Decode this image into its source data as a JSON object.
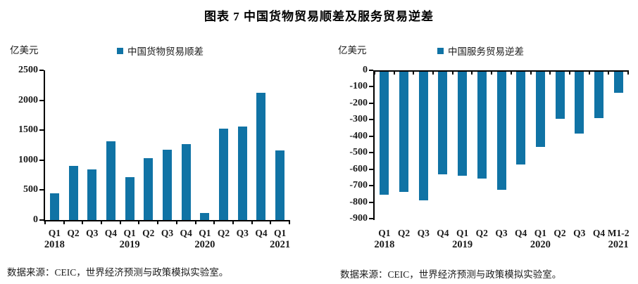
{
  "header": {
    "title": "图表 7  中国货物贸易顺差及服务贸易逆差"
  },
  "colors": {
    "bar": "#1073A5",
    "axis": "#000000",
    "text": "#1a1a1a"
  },
  "chart_data": [
    {
      "type": "bar",
      "title": "中国货物贸易顺差",
      "unit_label": "亿美元",
      "legend": [
        "中国货物贸易顺差"
      ],
      "legend_position": "top",
      "grid": false,
      "categories": [
        "Q1",
        "Q2",
        "Q3",
        "Q4",
        "Q1",
        "Q2",
        "Q3",
        "Q4",
        "Q1",
        "Q2",
        "Q3",
        "Q4",
        "Q1"
      ],
      "year_labels": [
        {
          "at_index": 0,
          "label": "2018"
        },
        {
          "at_index": 4,
          "label": "2019"
        },
        {
          "at_index": 8,
          "label": "2020"
        },
        {
          "at_index": 12,
          "label": "2021"
        }
      ],
      "values": [
        445,
        900,
        840,
        1315,
        720,
        1035,
        1175,
        1270,
        115,
        1525,
        1560,
        2120,
        1160
      ],
      "ylim": [
        0,
        2500
      ],
      "ytick_step": 500,
      "source_note": "数据来源：CEIC，世界经济预测与政策模拟实验室。"
    },
    {
      "type": "bar",
      "title": "中国服务贸易逆差",
      "unit_label": "亿美元",
      "legend": [
        "中国服务贸易逆差"
      ],
      "legend_position": "top",
      "grid": false,
      "categories": [
        "Q1",
        "Q2",
        "Q3",
        "Q4",
        "Q1",
        "Q2",
        "Q3",
        "Q4",
        "Q1",
        "Q2",
        "Q3",
        "Q4",
        "M1-2"
      ],
      "year_labels": [
        {
          "at_index": 0,
          "label": "2018"
        },
        {
          "at_index": 4,
          "label": "2019"
        },
        {
          "at_index": 8,
          "label": "2020"
        },
        {
          "at_index": 12,
          "label": "2021"
        }
      ],
      "values": [
        -755,
        -740,
        -790,
        -630,
        -640,
        -655,
        -725,
        -570,
        -465,
        -295,
        -385,
        -290,
        -135
      ],
      "ylim": [
        -900,
        0
      ],
      "ytick_step": 100,
      "source_note": "数据来源：CEIC，世界经济预测与政策模拟实验室。"
    }
  ]
}
